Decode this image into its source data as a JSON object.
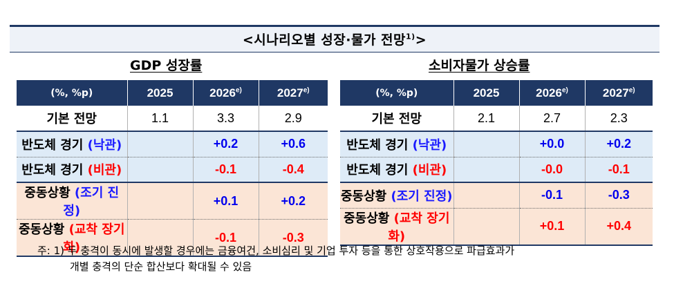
{
  "title": {
    "text": "<시나리오별 성장·물가 전망",
    "sup": "1)",
    "close": ">"
  },
  "left": {
    "section_title": "GDP 성장률",
    "header": {
      "unit": "(%, %p)",
      "y1": "2025",
      "y2": "2026",
      "y2_sup": "e)",
      "y3": "2027",
      "y3_sup": "e)"
    },
    "rows": [
      {
        "label": "기본 전망",
        "qual": "",
        "v1": "1.1",
        "v2": "3.3",
        "v3": "2.9"
      },
      {
        "label": "반도체 경기 ",
        "qual": "(낙관)",
        "v1": "",
        "v2": "+0.2",
        "v3": "+0.6"
      },
      {
        "label": "반도체 경기 ",
        "qual": "(비관)",
        "v1": "",
        "v2": "-0.1",
        "v3": "-0.4"
      },
      {
        "label": "중동상황 ",
        "qual": "(조기 진정)",
        "v1": "",
        "v2": "+0.1",
        "v3": "+0.2"
      },
      {
        "label": "중동상황 ",
        "qual": "(교착 장기화)",
        "v1": "",
        "v2": "-0.1",
        "v3": "-0.3"
      }
    ]
  },
  "right": {
    "section_title": "소비자물가 상승률",
    "header": {
      "unit": "(%, %p)",
      "y1": "2025",
      "y2": "2026",
      "y2_sup": "e)",
      "y3": "2027",
      "y3_sup": "e)"
    },
    "rows": [
      {
        "label": "기본 전망",
        "qual": "",
        "v1": "2.1",
        "v2": "2.7",
        "v3": "2.3"
      },
      {
        "label": "반도체 경기 ",
        "qual": "(낙관)",
        "v1": "",
        "v2": "+0.0",
        "v3": "+0.2"
      },
      {
        "label": "반도체 경기 ",
        "qual": "(비관)",
        "v1": "",
        "v2": "-0.0",
        "v3": "-0.1"
      },
      {
        "label": "중동상황 ",
        "qual": "(조기 진정)",
        "v1": "",
        "v2": "-0.1",
        "v3": "-0.3"
      },
      {
        "label": "중동상황 ",
        "qual": "(교착 장기화)",
        "v1": "",
        "v2": "+0.1",
        "v3": "+0.4"
      }
    ]
  },
  "note": {
    "line1": "주: 1) 두 충격이 동시에 발생할 경우에는 금융여건, 소비심리 및 기업 투자 등을 통한 상호작용으로 파급효과가",
    "line2": "개별 충격의 단순 합산보다 확대될 수 있음"
  },
  "colors": {
    "header_bg": "#1f3864",
    "semi_bg": "#deebf7",
    "mideast_bg": "#fbe5d6",
    "positive": "#0000ee",
    "negative": "#ff0000"
  }
}
